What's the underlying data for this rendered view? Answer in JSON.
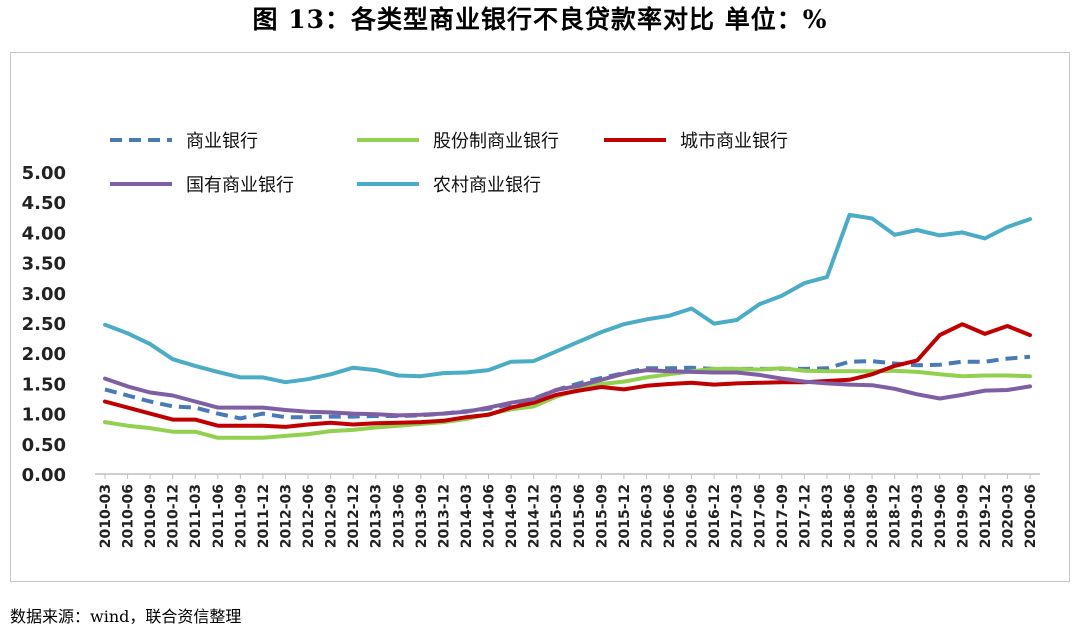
{
  "title": "图 13：各类型商业银行不良贷款率对比    单位：%",
  "source": "数据来源：wind，联合资信整理",
  "chart_data": {
    "type": "line",
    "title": "图 13：各类型商业银行不良贷款率对比    单位：%",
    "xlabel": "",
    "ylabel": "",
    "ylim": [
      0,
      5
    ],
    "yticks": [
      "0.00",
      "0.50",
      "1.00",
      "1.50",
      "2.00",
      "2.50",
      "3.00",
      "3.50",
      "4.00",
      "4.50",
      "5.00"
    ],
    "grid": false,
    "legend_position": "top-left",
    "x": [
      "2010-03",
      "2010-06",
      "2010-09",
      "2010-12",
      "2011-03",
      "2011-06",
      "2011-09",
      "2011-12",
      "2012-03",
      "2012-06",
      "2012-09",
      "2012-12",
      "2013-03",
      "2013-06",
      "2013-09",
      "2013-12",
      "2014-03",
      "2014-06",
      "2014-09",
      "2014-12",
      "2015-03",
      "2015-06",
      "2015-09",
      "2015-12",
      "2016-03",
      "2016-06",
      "2016-09",
      "2016-12",
      "2017-03",
      "2017-06",
      "2017-09",
      "2017-12",
      "2018-03",
      "2018-06",
      "2018-09",
      "2018-12",
      "2019-03",
      "2019-06",
      "2019-09",
      "2019-12",
      "2020-03",
      "2020-06"
    ],
    "series": [
      {
        "name": "商业银行",
        "color": "#4a7ab5",
        "dashed": true,
        "values": [
          1.4,
          1.3,
          1.2,
          1.12,
          1.1,
          1.0,
          0.92,
          1.0,
          0.94,
          0.94,
          0.95,
          0.95,
          0.96,
          0.96,
          0.97,
          1.0,
          1.04,
          1.08,
          1.16,
          1.25,
          1.39,
          1.5,
          1.59,
          1.67,
          1.75,
          1.75,
          1.76,
          1.74,
          1.74,
          1.74,
          1.74,
          1.74,
          1.75,
          1.86,
          1.87,
          1.83,
          1.8,
          1.81,
          1.86,
          1.86,
          1.91,
          1.94
        ]
      },
      {
        "name": "股份制商业银行",
        "color": "#92d050",
        "dashed": false,
        "values": [
          0.86,
          0.8,
          0.76,
          0.7,
          0.7,
          0.6,
          0.6,
          0.6,
          0.63,
          0.66,
          0.71,
          0.73,
          0.77,
          0.8,
          0.83,
          0.86,
          0.91,
          0.99,
          1.07,
          1.12,
          1.28,
          1.4,
          1.49,
          1.53,
          1.6,
          1.65,
          1.7,
          1.74,
          1.74,
          1.73,
          1.75,
          1.71,
          1.7,
          1.7,
          1.7,
          1.71,
          1.69,
          1.65,
          1.62,
          1.63,
          1.63,
          1.62
        ]
      },
      {
        "name": "城市商业银行",
        "color": "#c00000",
        "dashed": false,
        "values": [
          1.2,
          1.1,
          1.0,
          0.9,
          0.9,
          0.8,
          0.8,
          0.8,
          0.78,
          0.82,
          0.85,
          0.82,
          0.84,
          0.85,
          0.86,
          0.88,
          0.94,
          0.98,
          1.1,
          1.18,
          1.31,
          1.38,
          1.44,
          1.4,
          1.46,
          1.49,
          1.51,
          1.48,
          1.5,
          1.51,
          1.52,
          1.52,
          1.54,
          1.56,
          1.65,
          1.79,
          1.88,
          2.3,
          2.48,
          2.32,
          2.45,
          2.3
        ]
      },
      {
        "name": "国有商业银行",
        "color": "#7f5fa3",
        "dashed": false,
        "values": [
          1.58,
          1.45,
          1.35,
          1.3,
          1.2,
          1.1,
          1.1,
          1.1,
          1.06,
          1.03,
          1.02,
          1.0,
          0.99,
          0.97,
          0.98,
          1.0,
          1.03,
          1.1,
          1.18,
          1.24,
          1.39,
          1.46,
          1.56,
          1.66,
          1.72,
          1.7,
          1.69,
          1.68,
          1.68,
          1.64,
          1.58,
          1.53,
          1.5,
          1.48,
          1.47,
          1.41,
          1.32,
          1.25,
          1.31,
          1.38,
          1.39,
          1.45
        ]
      },
      {
        "name": "农村商业银行",
        "color": "#4bacc6",
        "dashed": false,
        "values": [
          2.47,
          2.33,
          2.15,
          1.9,
          1.79,
          1.69,
          1.6,
          1.6,
          1.52,
          1.57,
          1.65,
          1.76,
          1.72,
          1.63,
          1.62,
          1.67,
          1.68,
          1.72,
          1.86,
          1.87,
          2.03,
          2.19,
          2.35,
          2.48,
          2.56,
          2.62,
          2.74,
          2.49,
          2.55,
          2.81,
          2.95,
          3.16,
          3.26,
          4.29,
          4.23,
          3.96,
          4.04,
          3.95,
          4.0,
          3.9,
          4.09,
          4.22
        ]
      }
    ]
  }
}
